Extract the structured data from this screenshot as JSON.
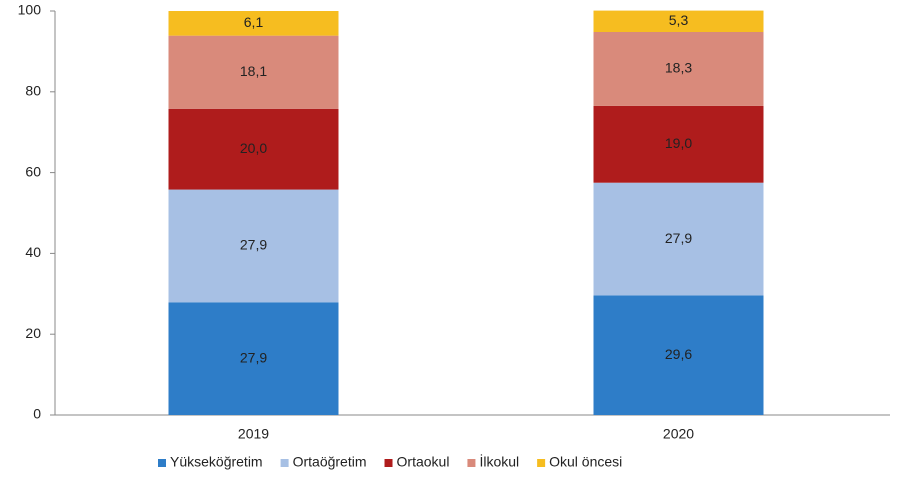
{
  "chart_data": {
    "type": "stacked_bar",
    "categories": [
      "2019",
      "2020"
    ],
    "series": [
      {
        "name": "Yükseköğretim",
        "color": "#2e7dc8",
        "values": [
          27.9,
          29.6
        ],
        "value_labels": [
          "27,9",
          "29,6"
        ]
      },
      {
        "name": "Ortaöğretim",
        "color": "#a7c0e4",
        "values": [
          27.9,
          27.9
        ],
        "value_labels": [
          "27,9",
          "27,9"
        ]
      },
      {
        "name": "Ortaokul",
        "color": "#af1c1c",
        "values": [
          20.0,
          19.0
        ],
        "value_labels": [
          "20,0",
          "19,0"
        ]
      },
      {
        "name": "İlkokul",
        "color": "#d98a7b",
        "values": [
          18.1,
          18.3
        ],
        "value_labels": [
          "18,1",
          "18,3"
        ]
      },
      {
        "name": "Okul öncesi",
        "color": "#f6bd20",
        "values": [
          6.1,
          5.3
        ],
        "value_labels": [
          "6,1",
          "5,3"
        ]
      }
    ],
    "ylim": [
      0,
      100
    ],
    "yticks": [
      0,
      20,
      40,
      60,
      80,
      100
    ],
    "grid": false,
    "legend": "bottom"
  }
}
